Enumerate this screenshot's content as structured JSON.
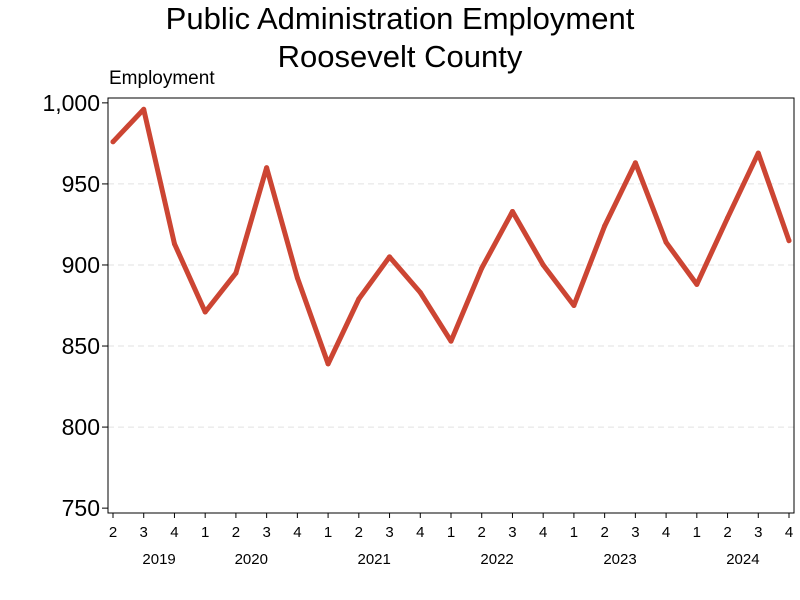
{
  "chart_data": {
    "type": "line",
    "title": "Public Administration Employment",
    "subtitle": "Roosevelt County",
    "ylabel": "Employment",
    "ylim": [
      747,
      1003
    ],
    "yticks": [
      750,
      800,
      850,
      900,
      950,
      1000
    ],
    "ytick_labels": [
      "750",
      "800",
      "850",
      "900",
      "950",
      "1,000"
    ],
    "x": [
      "2019 Q2",
      "2019 Q3",
      "2019 Q4",
      "2020 Q1",
      "2020 Q2",
      "2020 Q3",
      "2020 Q4",
      "2021 Q1",
      "2021 Q2",
      "2021 Q3",
      "2021 Q4",
      "2022 Q1",
      "2022 Q2",
      "2022 Q3",
      "2022 Q4",
      "2023 Q1",
      "2023 Q2",
      "2023 Q3",
      "2023 Q4",
      "2024 Q1",
      "2024 Q2",
      "2024 Q3",
      "2024 Q4"
    ],
    "quarter_labels": [
      "2",
      "3",
      "4",
      "1",
      "2",
      "3",
      "4",
      "1",
      "2",
      "3",
      "4",
      "1",
      "2",
      "3",
      "4",
      "1",
      "2",
      "3",
      "4",
      "1",
      "2",
      "3",
      "4"
    ],
    "year_labels": [
      {
        "label": "2019",
        "index": 0
      },
      {
        "label": "2020",
        "index": 3
      },
      {
        "label": "2021",
        "index": 7
      },
      {
        "label": "2022",
        "index": 11
      },
      {
        "label": "2023",
        "index": 15
      },
      {
        "label": "2024",
        "index": 19
      }
    ],
    "series": [
      {
        "values": [
          976,
          996,
          913,
          871,
          895,
          960,
          892,
          839,
          879,
          905,
          883,
          853,
          898,
          933,
          900,
          875,
          924,
          963,
          914,
          888,
          929,
          969,
          915
        ]
      }
    ],
    "grid": "horizontal-dashed",
    "line_color": "#cc4533"
  }
}
